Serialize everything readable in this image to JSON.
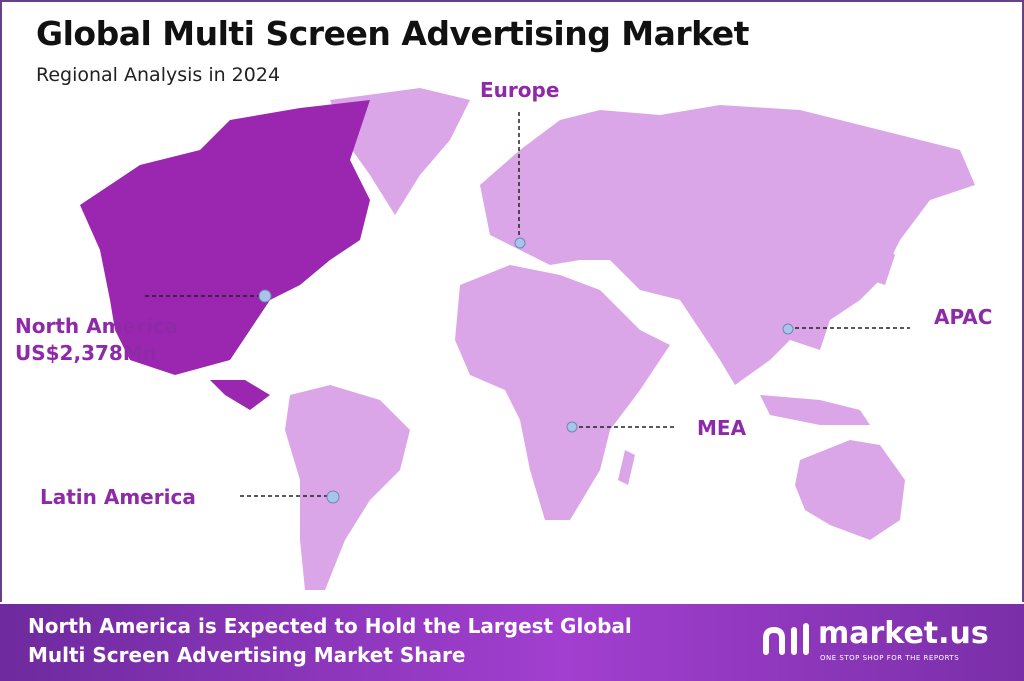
{
  "header": {
    "title": "Global Multi Screen Advertising Market",
    "subtitle": "Regional Analysis in 2024"
  },
  "colors": {
    "highlight_region": "#9b27b0",
    "other_regions": "#dba6e8",
    "label": "#8e2aa8",
    "marker": "#a9c4ea"
  },
  "regions": [
    {
      "name": "North America",
      "value": "US$2,378Mn",
      "highlighted": true
    },
    {
      "name": "Europe"
    },
    {
      "name": "APAC"
    },
    {
      "name": "MEA"
    },
    {
      "name": "Latin America"
    }
  ],
  "footer": {
    "text_line1": "North America is Expected to Hold the Largest Global",
    "text_line2": "Multi Screen Advertising Market Share",
    "logo_name": "market.us",
    "logo_tagline": "ONE STOP SHOP FOR THE REPORTS"
  }
}
